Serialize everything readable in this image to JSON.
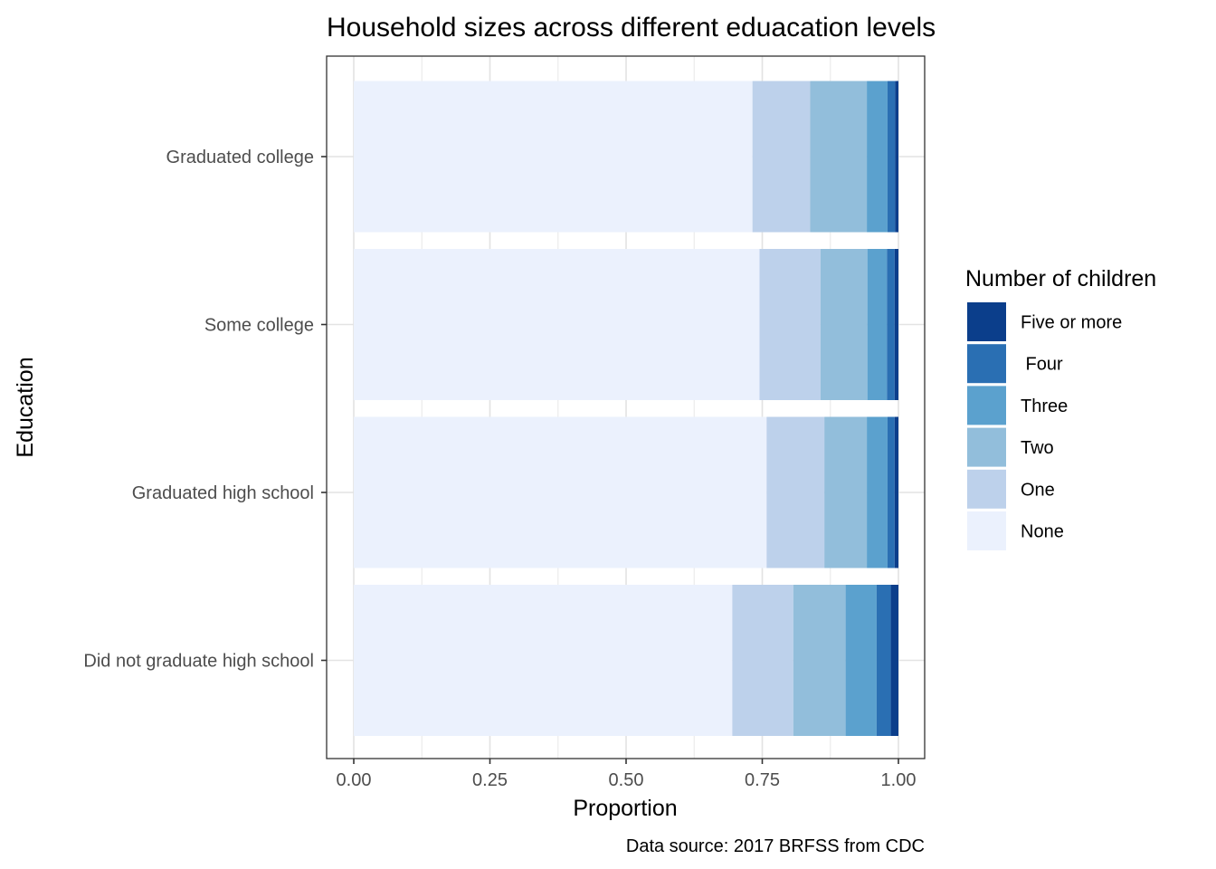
{
  "chart_data": {
    "type": "bar",
    "orientation": "horizontal",
    "stacked": true,
    "title": "Household sizes across different eduacation levels",
    "xlabel": "Proportion",
    "ylabel": "Education",
    "caption": "Data source: 2017 BRFSS from CDC",
    "xlim": [
      0,
      1
    ],
    "x_ticks": [
      "0.00",
      "0.25",
      "0.50",
      "0.75",
      "1.00"
    ],
    "x_tick_values": [
      0,
      0.25,
      0.5,
      0.75,
      1.0
    ],
    "grid": true,
    "legend_position": "right",
    "legend_title": "Number of children",
    "categories": [
      "Graduated college",
      "Some college",
      "Graduated high school",
      "Did not graduate high school"
    ],
    "series": [
      {
        "name": "None",
        "color": "#EBF1FD",
        "values": [
          0.732,
          0.745,
          0.758,
          0.695
        ]
      },
      {
        "name": "One",
        "color": "#BDD1EB",
        "values": [
          0.106,
          0.112,
          0.106,
          0.112
        ]
      },
      {
        "name": "Two",
        "color": "#92BEDB",
        "values": [
          0.104,
          0.086,
          0.078,
          0.096
        ]
      },
      {
        "name": "Three",
        "color": "#5BA1CE",
        "values": [
          0.038,
          0.036,
          0.038,
          0.057
        ]
      },
      {
        "name": " Four",
        "color": "#2A6FB3",
        "values": [
          0.014,
          0.014,
          0.013,
          0.026
        ]
      },
      {
        "name": "Five or more",
        "color": "#0B3E8B",
        "values": [
          0.006,
          0.007,
          0.007,
          0.014
        ]
      }
    ]
  }
}
